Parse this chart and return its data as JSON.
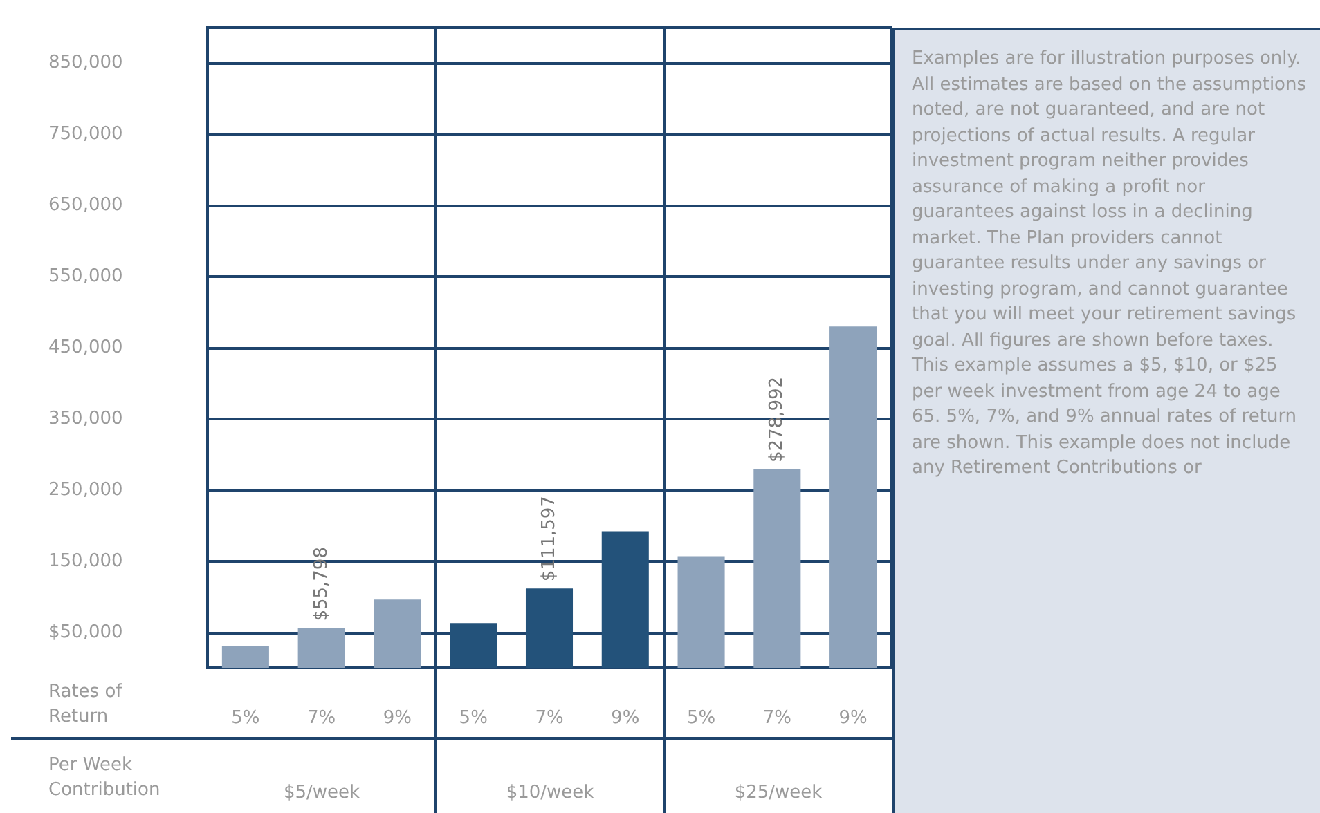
{
  "chart_data": {
    "type": "bar",
    "xlabel": "Rates of Return",
    "categories": [
      "5%",
      "7%",
      "9%",
      "5%",
      "7%",
      "9%",
      "5%",
      "7%",
      "9%"
    ],
    "values": [
      31000,
      55798,
      96000,
      63000,
      111597,
      192000,
      157000,
      278992,
      480000
    ],
    "colors": [
      "#8ea3bb",
      "#8ea3bb",
      "#8ea3bb",
      "#23527a",
      "#23527a",
      "#23527a",
      "#8ea3bb",
      "#8ea3bb",
      "#8ea3bb"
    ],
    "value_labels": [
      null,
      "$55,798",
      null,
      null,
      "$111,597",
      null,
      null,
      "$278,992",
      null
    ],
    "ylim": [
      0,
      900000
    ],
    "yticks": [
      {
        "value": 50000,
        "label": "$50,000"
      },
      {
        "value": 150000,
        "label": "150,000"
      },
      {
        "value": 250000,
        "label": "250,000"
      },
      {
        "value": 350000,
        "label": "350,000"
      },
      {
        "value": 450000,
        "label": "450,000"
      },
      {
        "value": 550000,
        "label": "550,000"
      },
      {
        "value": 650000,
        "label": "650,000"
      },
      {
        "value": 750000,
        "label": "750,000"
      },
      {
        "value": 850000,
        "label": "850,000"
      }
    ],
    "grid": true,
    "annotations": [
      "Per Week Contribution",
      "$5/week",
      "$10/week",
      "$25/week",
      "Examples are for illustration purposes only. All estimates are based on the assumptions noted, are not guaranteed, and are not projections of actual results. A regular investment program neither provides assurance of making a profit nor guarantees against loss in a declining market. The Plan providers cannot guarantee results under any savings or investing program, and cannot guarantee that you will meet your retirement savings goal. All figures are shown before taxes. This example assumes a $5, $10, or $25 per week investment from age 24 to age 65. 5%, 7%, and 9% annual rates of return are shown. This example does not include any Retirement Contributions or"
    ]
  }
}
